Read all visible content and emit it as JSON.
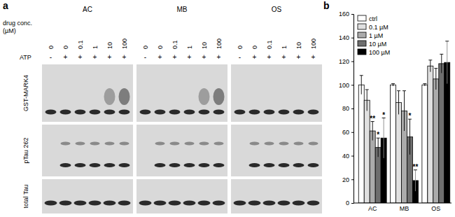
{
  "blot_panel": {
    "label": "a",
    "drugs": [
      "AC",
      "MB",
      "OS"
    ],
    "conc_label": [
      "drug conc.",
      "(µM)"
    ],
    "concentrations": [
      0,
      0,
      0.1,
      1,
      10,
      100
    ],
    "atp_label": "ATP",
    "atp": [
      "-",
      "+",
      "+",
      "+",
      "+",
      "+"
    ],
    "blots": [
      "GST-MARK4",
      "pTau 262",
      "total Tau"
    ]
  },
  "chart_data": {
    "type": "bar",
    "title": "b",
    "categories": [
      "AC",
      "MB",
      "OS"
    ],
    "series": [
      {
        "name": "ctrl",
        "color": "#ffffff",
        "values": [
          100,
          100,
          100
        ],
        "errors": [
          8,
          1,
          1
        ]
      },
      {
        "name": "0.1 µM",
        "color": "#e0e0e0",
        "values": [
          87,
          85,
          116
        ],
        "errors": [
          9,
          10,
          5
        ]
      },
      {
        "name": "1 µM",
        "color": "#ababab",
        "values": [
          61,
          78,
          105
        ],
        "errors": [
          8,
          17,
          9
        ]
      },
      {
        "name": "10 µM",
        "color": "#6e6e6e",
        "values": [
          47,
          56,
          118
        ],
        "errors": [
          8,
          15,
          8
        ]
      },
      {
        "name": "100 µM",
        "color": "#000000",
        "values": [
          55,
          19,
          119
        ],
        "errors": [
          17,
          9,
          18
        ]
      }
    ],
    "ylim": [
      0,
      160
    ],
    "yticks": [
      0,
      20,
      40,
      60,
      80,
      100,
      120,
      140,
      160
    ],
    "grid": false,
    "legend": "top-left",
    "annotations": [
      {
        "category": "AC",
        "series": "1 µM",
        "text": "**"
      },
      {
        "category": "AC",
        "series": "10 µM",
        "text": "*"
      },
      {
        "category": "AC",
        "series": "100 µM",
        "text": "*"
      },
      {
        "category": "MB",
        "series": "10 µM",
        "text": "*"
      },
      {
        "category": "MB",
        "series": "100 µM",
        "text": "**"
      }
    ]
  }
}
